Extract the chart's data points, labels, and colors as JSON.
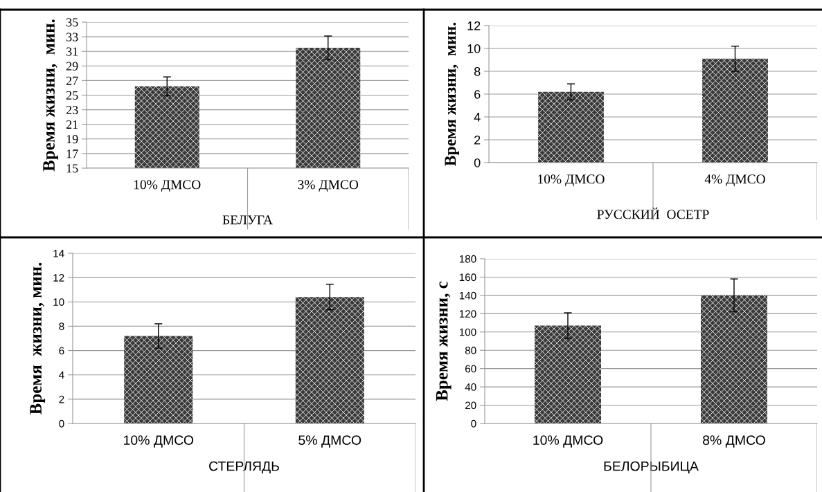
{
  "chart_data": [
    {
      "type": "bar",
      "categories": [
        "10% ДМСО",
        "3% ДМСО"
      ],
      "values": [
        26.2,
        31.5
      ],
      "errors": [
        1.3,
        1.6
      ],
      "color": "#3a3a3a",
      "xlabel": "БЕЛУГА",
      "ylabel": "Время жизни,  мин.",
      "ylim": [
        15,
        35
      ],
      "yticks": [
        15,
        17,
        19,
        21,
        23,
        25,
        27,
        29,
        31,
        33,
        35
      ],
      "grid": "y"
    },
    {
      "type": "bar",
      "categories": [
        "10% ДМСО",
        "4% ДМСО"
      ],
      "values": [
        6.2,
        9.1
      ],
      "errors": [
        0.7,
        1.1
      ],
      "color": "#3a3a3a",
      "xlabel": "РУССКИЙ  ОСЕТР",
      "ylabel": "Время жизни,  мин.",
      "ylim": [
        0,
        12
      ],
      "yticks": [
        0,
        2,
        4,
        6,
        8,
        10,
        12
      ],
      "grid": "y"
    },
    {
      "type": "bar",
      "categories": [
        "10% ДМСО",
        "5% ДМСО"
      ],
      "values": [
        7.2,
        10.4
      ],
      "errors": [
        1.0,
        1.05
      ],
      "color": "#3a3a3a",
      "xlabel": "СТЕРЛЯДЬ",
      "ylabel": "Время  жизни, мин.",
      "ylim": [
        0,
        14
      ],
      "yticks": [
        0,
        2,
        4,
        6,
        8,
        10,
        12,
        14
      ],
      "grid": "y"
    },
    {
      "type": "bar",
      "categories": [
        "10% ДМСО",
        "8% ДМСО"
      ],
      "values": [
        107,
        140
      ],
      "errors": [
        14,
        18
      ],
      "color": "#3a3a3a",
      "xlabel": "БЕЛОРЫБИЦА",
      "ylabel": "Время жизни, с",
      "ylim": [
        0,
        180
      ],
      "yticks": [
        0,
        20,
        40,
        60,
        80,
        100,
        120,
        140,
        160,
        180
      ],
      "grid": "y"
    }
  ]
}
